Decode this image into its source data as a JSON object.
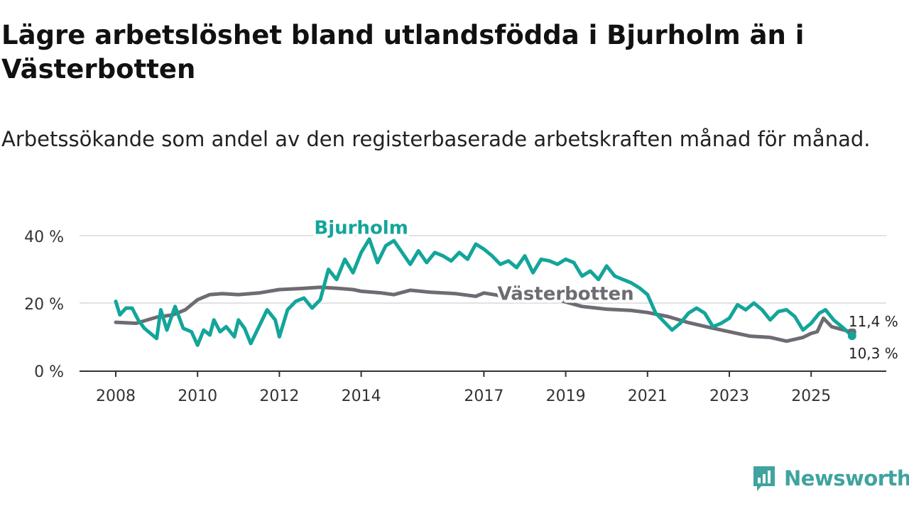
{
  "title": "Lägre arbetslöshet bland utlandsfödda i Bjurholm än i Västerbotten",
  "subtitle": "Arbetssökande som andel av den registerbaserade arbetskraften månad för månad.",
  "brand": {
    "name": "Newsworthy",
    "color": "#3fa39f"
  },
  "chart_data": {
    "type": "line",
    "title": "Lägre arbetslöshet bland utlandsfödda i Bjurholm än i Västerbotten",
    "subtitle": "Arbetssökande som andel av den registerbaserade arbetskraften månad för månad.",
    "xlabel": "",
    "ylabel": "",
    "xlim": [
      2008.0,
      2026.83
    ],
    "ylim": [
      0,
      40
    ],
    "y_ticks": [
      0,
      20,
      40
    ],
    "y_tick_labels": [
      "0 %",
      "20 %",
      "40 %"
    ],
    "x_ticks": [
      2008,
      2010,
      2012,
      2014,
      2017,
      2019,
      2021,
      2023,
      2025
    ],
    "x_tick_labels": [
      "2008",
      "2010",
      "2012",
      "2014",
      "2017",
      "2019",
      "2021",
      "2023",
      "2025"
    ],
    "grid": true,
    "series": [
      {
        "name": "Västerbotten",
        "color": "#6e6b72",
        "end_label": "11,4 %",
        "points": [
          [
            2008.0,
            14.3
          ],
          [
            2008.5,
            14.0
          ],
          [
            2009.0,
            15.8
          ],
          [
            2009.4,
            16.5
          ],
          [
            2009.7,
            18.0
          ],
          [
            2010.0,
            21.0
          ],
          [
            2010.3,
            22.5
          ],
          [
            2010.6,
            22.8
          ],
          [
            2011.0,
            22.5
          ],
          [
            2011.5,
            23.0
          ],
          [
            2012.0,
            24.0
          ],
          [
            2012.5,
            24.3
          ],
          [
            2013.0,
            24.7
          ],
          [
            2013.4,
            24.4
          ],
          [
            2013.8,
            24.0
          ],
          [
            2014.0,
            23.5
          ],
          [
            2014.5,
            23.0
          ],
          [
            2014.8,
            22.5
          ],
          [
            2015.2,
            23.8
          ],
          [
            2015.7,
            23.2
          ],
          [
            2016.3,
            22.8
          ],
          [
            2016.8,
            22.0
          ],
          [
            2017.0,
            23.0
          ],
          [
            2017.5,
            22.0
          ],
          [
            2018.0,
            22.7
          ],
          [
            2018.8,
            21.0
          ],
          [
            2019.4,
            19.0
          ],
          [
            2020.0,
            18.2
          ],
          [
            2020.6,
            17.8
          ],
          [
            2021.0,
            17.2
          ],
          [
            2021.5,
            16.0
          ],
          [
            2022.0,
            14.2
          ],
          [
            2022.5,
            12.8
          ],
          [
            2023.0,
            11.5
          ],
          [
            2023.5,
            10.2
          ],
          [
            2024.0,
            9.8
          ],
          [
            2024.4,
            8.7
          ],
          [
            2024.8,
            9.8
          ],
          [
            2025.0,
            11.0
          ],
          [
            2025.15,
            11.5
          ],
          [
            2025.3,
            15.5
          ],
          [
            2025.5,
            13.0
          ],
          [
            2025.8,
            12.0
          ],
          [
            2026.0,
            11.4
          ]
        ]
      },
      {
        "name": "Bjurholm",
        "color": "#13a59a",
        "end_label": "10,3 %",
        "points": [
          [
            2008.0,
            20.5
          ],
          [
            2008.1,
            16.5
          ],
          [
            2008.25,
            18.5
          ],
          [
            2008.4,
            18.5
          ],
          [
            2008.55,
            15.0
          ],
          [
            2008.7,
            12.5
          ],
          [
            2008.85,
            11.0
          ],
          [
            2009.0,
            9.5
          ],
          [
            2009.1,
            18.0
          ],
          [
            2009.25,
            12.0
          ],
          [
            2009.45,
            19.0
          ],
          [
            2009.65,
            12.5
          ],
          [
            2009.85,
            11.5
          ],
          [
            2010.0,
            7.5
          ],
          [
            2010.15,
            12.0
          ],
          [
            2010.3,
            10.5
          ],
          [
            2010.4,
            15.0
          ],
          [
            2010.55,
            11.5
          ],
          [
            2010.7,
            13.0
          ],
          [
            2010.9,
            10.0
          ],
          [
            2011.0,
            15.0
          ],
          [
            2011.15,
            12.5
          ],
          [
            2011.3,
            8.0
          ],
          [
            2011.5,
            13.0
          ],
          [
            2011.7,
            18.0
          ],
          [
            2011.9,
            15.0
          ],
          [
            2012.0,
            10.0
          ],
          [
            2012.2,
            18.0
          ],
          [
            2012.4,
            20.5
          ],
          [
            2012.6,
            21.5
          ],
          [
            2012.8,
            18.5
          ],
          [
            2013.0,
            21.0
          ],
          [
            2013.2,
            30.0
          ],
          [
            2013.4,
            27.0
          ],
          [
            2013.6,
            33.0
          ],
          [
            2013.8,
            29.0
          ],
          [
            2014.0,
            35.0
          ],
          [
            2014.2,
            39.0
          ],
          [
            2014.4,
            32.0
          ],
          [
            2014.6,
            37.0
          ],
          [
            2014.8,
            38.5
          ],
          [
            2015.0,
            35.0
          ],
          [
            2015.2,
            31.5
          ],
          [
            2015.4,
            35.5
          ],
          [
            2015.6,
            32.0
          ],
          [
            2015.8,
            35.0
          ],
          [
            2016.0,
            34.0
          ],
          [
            2016.2,
            32.5
          ],
          [
            2016.4,
            35.0
          ],
          [
            2016.6,
            33.0
          ],
          [
            2016.8,
            37.5
          ],
          [
            2017.0,
            36.0
          ],
          [
            2017.2,
            34.0
          ],
          [
            2017.4,
            31.5
          ],
          [
            2017.6,
            32.5
          ],
          [
            2017.8,
            30.5
          ],
          [
            2018.0,
            34.0
          ],
          [
            2018.2,
            29.0
          ],
          [
            2018.4,
            33.0
          ],
          [
            2018.6,
            32.5
          ],
          [
            2018.8,
            31.5
          ],
          [
            2019.0,
            33.0
          ],
          [
            2019.2,
            32.0
          ],
          [
            2019.4,
            28.0
          ],
          [
            2019.6,
            29.5
          ],
          [
            2019.8,
            27.0
          ],
          [
            2020.0,
            31.0
          ],
          [
            2020.2,
            28.0
          ],
          [
            2020.4,
            27.0
          ],
          [
            2020.6,
            26.0
          ],
          [
            2020.8,
            24.5
          ],
          [
            2021.0,
            22.5
          ],
          [
            2021.2,
            17.0
          ],
          [
            2021.4,
            14.5
          ],
          [
            2021.6,
            12.0
          ],
          [
            2021.8,
            14.0
          ],
          [
            2022.0,
            17.0
          ],
          [
            2022.2,
            18.5
          ],
          [
            2022.4,
            17.0
          ],
          [
            2022.6,
            13.0
          ],
          [
            2022.8,
            14.0
          ],
          [
            2023.0,
            15.5
          ],
          [
            2023.2,
            19.5
          ],
          [
            2023.4,
            18.0
          ],
          [
            2023.6,
            20.0
          ],
          [
            2023.8,
            18.0
          ],
          [
            2024.0,
            15.0
          ],
          [
            2024.2,
            17.5
          ],
          [
            2024.4,
            18.0
          ],
          [
            2024.6,
            16.0
          ],
          [
            2024.8,
            12.0
          ],
          [
            2025.0,
            14.0
          ],
          [
            2025.2,
            17.0
          ],
          [
            2025.35,
            18.0
          ],
          [
            2025.55,
            15.0
          ],
          [
            2025.75,
            13.0
          ],
          [
            2026.0,
            10.3
          ]
        ]
      }
    ],
    "annotations": [
      {
        "text": "Bjurholm",
        "series": "Bjurholm",
        "anchor_x": 2014.0,
        "anchor_y": 40.5
      },
      {
        "text": "Västerbotten",
        "series": "Västerbotten",
        "anchor_x": 2019.0,
        "anchor_y": 21.0
      }
    ]
  }
}
